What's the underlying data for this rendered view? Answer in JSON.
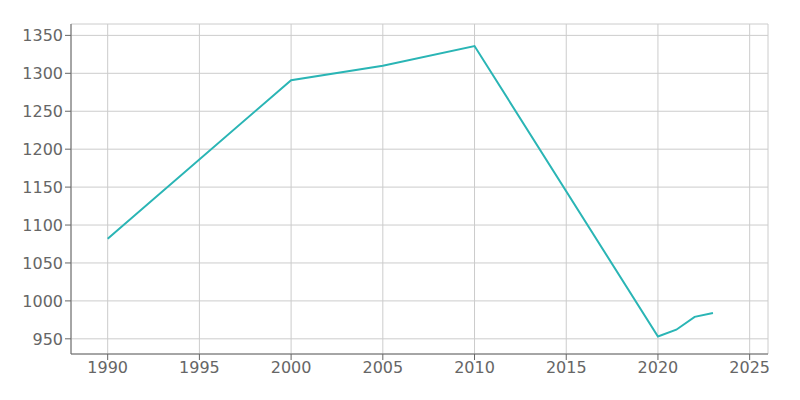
{
  "chart_data": {
    "type": "line",
    "x": [
      1990,
      2000,
      2005,
      2010,
      2020,
      2021,
      2022,
      2023
    ],
    "values": [
      1082,
      1291,
      1310,
      1336,
      953,
      962,
      979,
      984
    ],
    "color": "#2ab5b5",
    "xlim": [
      1988,
      2026
    ],
    "ylim": [
      930,
      1365
    ],
    "xticks": [
      1990,
      1995,
      2000,
      2005,
      2010,
      2015,
      2020,
      2025
    ],
    "yticks": [
      950,
      1000,
      1050,
      1100,
      1150,
      1200,
      1250,
      1300,
      1350
    ],
    "grid": true
  }
}
